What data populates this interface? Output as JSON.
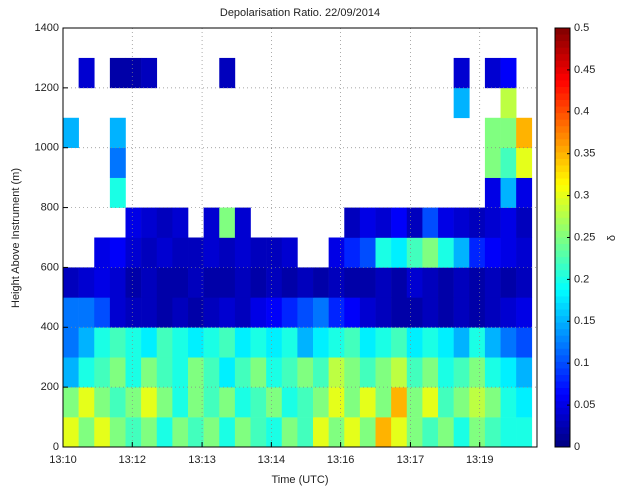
{
  "chart_data": {
    "type": "heatmap",
    "title": "Depolarisation Ratio. 22/09/2014",
    "x_label": "Time (UTC)",
    "y_label": "Height Above Instrument (m)",
    "colorbar_label": "δ",
    "colormap": "jet",
    "x": [
      790.15,
      790.45,
      790.75,
      791.05,
      791.35,
      791.65,
      791.95,
      792.25,
      792.55,
      792.85,
      793.15,
      793.45,
      793.75,
      794.05,
      794.35,
      794.65,
      794.95,
      795.25,
      795.55,
      795.85,
      796.15,
      796.45,
      796.75,
      797.05,
      797.35,
      797.65,
      797.95,
      798.25,
      798.55,
      798.85
    ],
    "y": [
      50,
      150,
      250,
      350,
      450,
      550,
      650,
      750,
      850,
      950,
      1050,
      1150,
      1250,
      1350
    ],
    "z": [
      [
        0.3,
        0.25,
        0.3,
        0.25,
        0.22,
        0.25,
        0.2,
        0.25,
        0.22,
        0.25,
        0.2,
        0.25,
        0.22,
        0.2,
        0.25,
        0.22,
        0.3,
        0.25,
        0.3,
        0.25,
        0.35,
        0.3,
        0.25,
        0.22,
        0.25,
        0.2,
        0.25,
        0.22,
        0.2,
        0.2
      ],
      [
        0.25,
        0.3,
        0.25,
        0.22,
        0.25,
        0.3,
        0.25,
        0.2,
        0.25,
        0.22,
        0.25,
        0.2,
        0.22,
        0.25,
        0.2,
        0.22,
        0.25,
        0.3,
        0.25,
        0.3,
        0.25,
        0.35,
        0.25,
        0.3,
        0.22,
        0.25,
        0.28,
        0.25,
        0.2,
        0.18
      ],
      [
        0.15,
        0.2,
        0.22,
        0.25,
        0.2,
        0.25,
        0.22,
        0.2,
        0.25,
        0.22,
        0.18,
        0.22,
        0.25,
        0.2,
        0.22,
        0.25,
        0.22,
        0.28,
        0.25,
        0.22,
        0.25,
        0.28,
        0.22,
        0.25,
        0.2,
        0.22,
        0.25,
        0.2,
        0.18,
        0.15
      ],
      [
        0.12,
        0.15,
        0.2,
        0.22,
        0.2,
        0.18,
        0.22,
        0.2,
        0.18,
        0.2,
        0.22,
        0.18,
        0.2,
        0.18,
        0.2,
        0.15,
        0.18,
        0.2,
        0.22,
        0.18,
        0.2,
        0.22,
        0.18,
        0.2,
        0.18,
        0.15,
        0.2,
        0.15,
        0.12,
        0.1
      ],
      [
        0.12,
        0.12,
        0.1,
        0.04,
        0.03,
        0.03,
        0.02,
        0.03,
        0.02,
        0.03,
        0.04,
        0.03,
        0.05,
        0.06,
        0.08,
        0.1,
        0.12,
        0.08,
        0.06,
        0.04,
        0.03,
        0.02,
        0.02,
        0.03,
        0.02,
        0.03,
        0.02,
        0.03,
        0.04,
        0.05
      ],
      [
        0.03,
        0.04,
        0.05,
        0.04,
        0.02,
        0.03,
        0.02,
        0.02,
        0.03,
        0.02,
        0.02,
        0.03,
        0.02,
        0.03,
        0.02,
        0.03,
        0.02,
        0.03,
        0.02,
        0.02,
        0.03,
        0.02,
        0.04,
        0.03,
        0.02,
        0.03,
        0.02,
        0.03,
        0.02,
        0.03
      ],
      [
        null,
        null,
        0.05,
        0.06,
        0.04,
        0.03,
        0.04,
        0.03,
        0.03,
        0.04,
        0.03,
        0.04,
        0.03,
        0.03,
        0.04,
        null,
        null,
        0.05,
        0.08,
        0.1,
        0.2,
        0.18,
        0.22,
        0.25,
        0.2,
        0.15,
        0.08,
        0.06,
        0.05,
        0.04
      ],
      [
        null,
        null,
        null,
        null,
        0.05,
        0.04,
        0.03,
        0.04,
        null,
        0.04,
        0.25,
        0.04,
        null,
        null,
        null,
        null,
        null,
        null,
        0.03,
        0.05,
        0.04,
        0.06,
        0.03,
        0.1,
        0.05,
        0.04,
        0.03,
        0.04,
        0.05,
        0.03
      ],
      [
        null,
        null,
        null,
        0.2,
        null,
        null,
        null,
        null,
        null,
        null,
        null,
        null,
        null,
        null,
        null,
        null,
        null,
        null,
        null,
        null,
        null,
        null,
        null,
        null,
        null,
        null,
        null,
        0.05,
        0.15,
        0.05
      ],
      [
        null,
        null,
        null,
        0.12,
        null,
        null,
        null,
        null,
        null,
        null,
        null,
        null,
        null,
        null,
        null,
        null,
        null,
        null,
        null,
        null,
        null,
        null,
        null,
        null,
        null,
        null,
        null,
        0.25,
        0.22,
        0.3
      ],
      [
        0.15,
        null,
        null,
        0.15,
        null,
        null,
        null,
        null,
        null,
        null,
        null,
        null,
        null,
        null,
        null,
        null,
        null,
        null,
        null,
        null,
        null,
        null,
        null,
        null,
        null,
        null,
        null,
        0.25,
        0.25,
        0.35
      ],
      [
        null,
        null,
        null,
        null,
        null,
        null,
        null,
        null,
        null,
        null,
        null,
        null,
        null,
        null,
        null,
        null,
        null,
        null,
        null,
        null,
        null,
        null,
        null,
        null,
        null,
        0.15,
        null,
        null,
        0.28,
        null
      ],
      [
        null,
        0.04,
        null,
        0.02,
        0.02,
        0.03,
        null,
        null,
        null,
        null,
        0.03,
        null,
        null,
        null,
        null,
        null,
        null,
        null,
        null,
        null,
        null,
        null,
        null,
        null,
        null,
        0.04,
        null,
        0.04,
        0.06,
        null
      ],
      [
        null,
        null,
        null,
        null,
        null,
        null,
        null,
        null,
        null,
        null,
        null,
        null,
        null,
        null,
        null,
        null,
        null,
        null,
        null,
        null,
        null,
        null,
        null,
        null,
        null,
        null,
        null,
        null,
        null,
        null
      ]
    ],
    "xlim": [
      790,
      799.1
    ],
    "xticks": [
      {
        "value": 790,
        "label": "13:10"
      },
      {
        "value": 791.33,
        "label": "13:12"
      },
      {
        "value": 792.67,
        "label": "13:13"
      },
      {
        "value": 794,
        "label": "13:14"
      },
      {
        "value": 795.33,
        "label": "13:16"
      },
      {
        "value": 796.67,
        "label": "13:17"
      },
      {
        "value": 798,
        "label": "13:19"
      }
    ],
    "ylim": [
      0,
      1400
    ],
    "yticks": [
      0,
      200,
      400,
      600,
      800,
      1000,
      1200,
      1400
    ],
    "clim": [
      0,
      0.5
    ],
    "cticks": [
      0,
      0.05,
      0.1,
      0.15,
      0.2,
      0.25,
      0.3,
      0.35,
      0.4,
      0.45,
      0.5
    ],
    "grid": true
  }
}
